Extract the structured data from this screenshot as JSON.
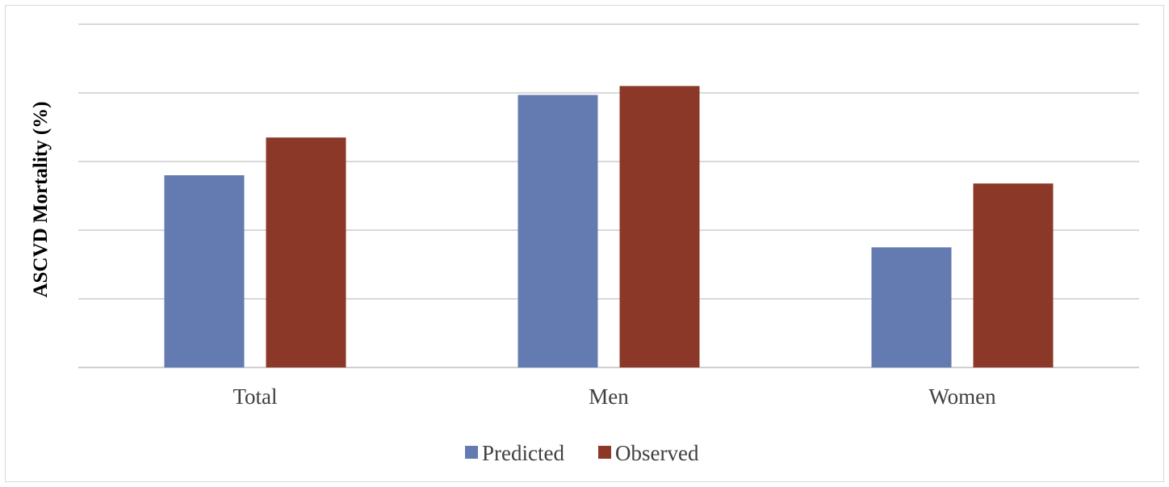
{
  "chart_data": {
    "type": "bar",
    "categories": [
      "Total",
      "Men",
      "Women"
    ],
    "series": [
      {
        "name": "Predicted",
        "values": [
          2.8,
          3.97,
          1.75
        ],
        "color": "#637bb0"
      },
      {
        "name": "Observed",
        "values": [
          3.35,
          4.1,
          2.68
        ],
        "color": "#8b3828"
      }
    ],
    "ylabel": "ASCVD Mortality (%)",
    "xlabel": "",
    "ylim": [
      0,
      5
    ],
    "grid": true,
    "legend": "bottom-center",
    "colors": {
      "gridline": "#d9d9d9",
      "axis": "#d0d0d0"
    }
  }
}
